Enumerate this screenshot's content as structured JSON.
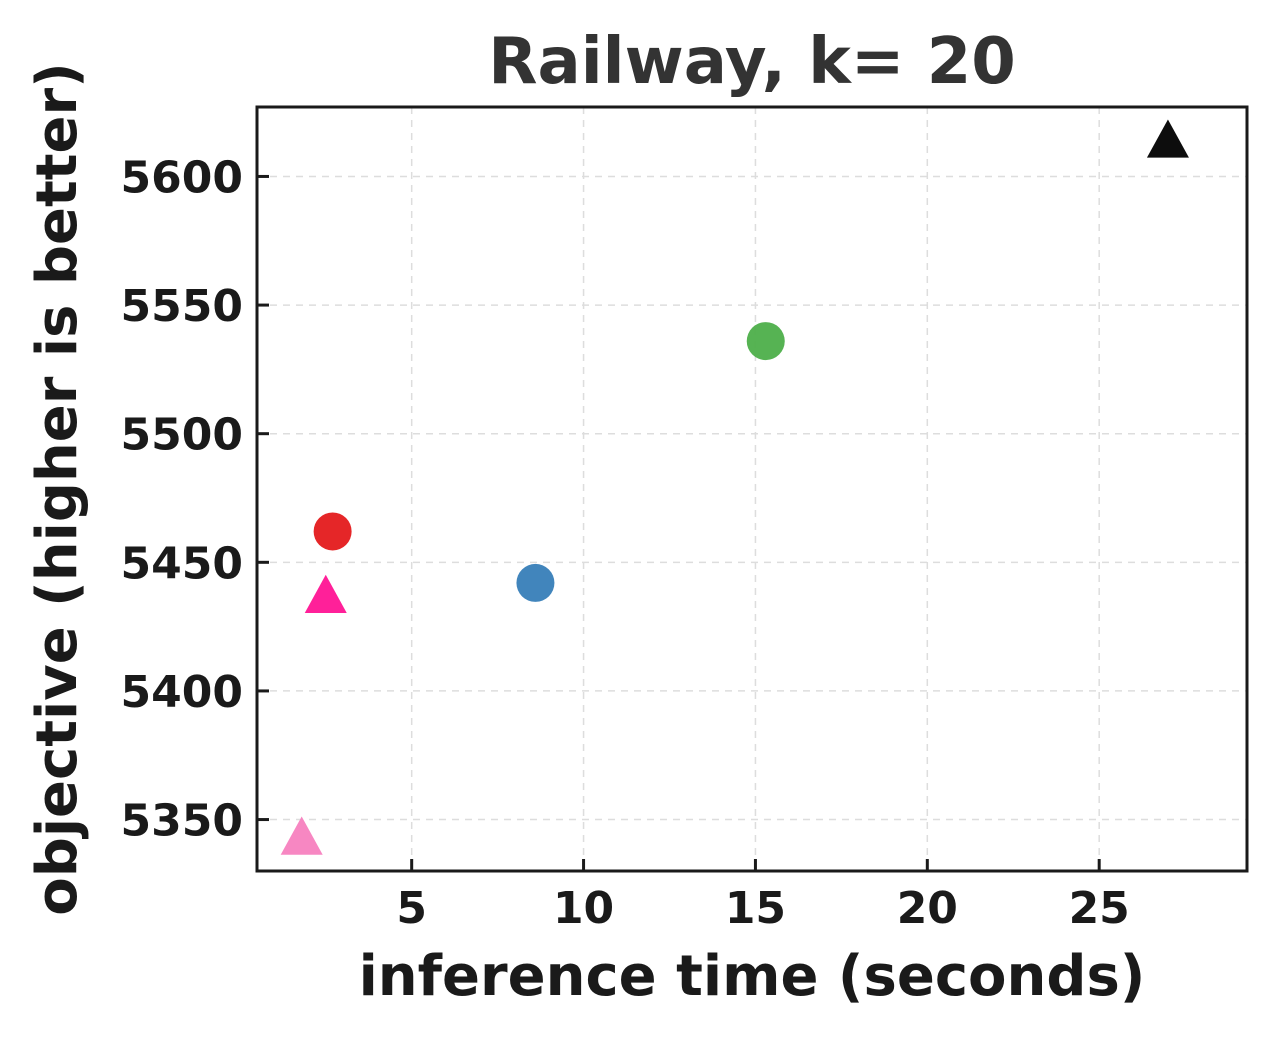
{
  "chart_data": {
    "type": "scatter",
    "title": "Railway, k= 20",
    "xlabel": "inference time (seconds)",
    "ylabel": "objective (higher is better)",
    "xlim": [
      0.5,
      29.3
    ],
    "ylim": [
      5330,
      5627
    ],
    "xticks": [
      5,
      10,
      15,
      20,
      25
    ],
    "yticks": [
      5350,
      5400,
      5450,
      5500,
      5550,
      5600
    ],
    "grid": true,
    "points": [
      {
        "x": 2.7,
        "y": 5462,
        "marker": "circle",
        "color": "#e41a1c"
      },
      {
        "x": 2.5,
        "y": 5437,
        "marker": "triangle",
        "color": "#ff1493"
      },
      {
        "x": 8.6,
        "y": 5442,
        "marker": "circle",
        "color": "#377eb8"
      },
      {
        "x": 15.3,
        "y": 5536,
        "marker": "circle",
        "color": "#4daf4a"
      },
      {
        "x": 1.8,
        "y": 5343,
        "marker": "triangle",
        "color": "#f781bf"
      },
      {
        "x": 27.0,
        "y": 5614,
        "marker": "triangle",
        "color": "#000000"
      }
    ]
  }
}
